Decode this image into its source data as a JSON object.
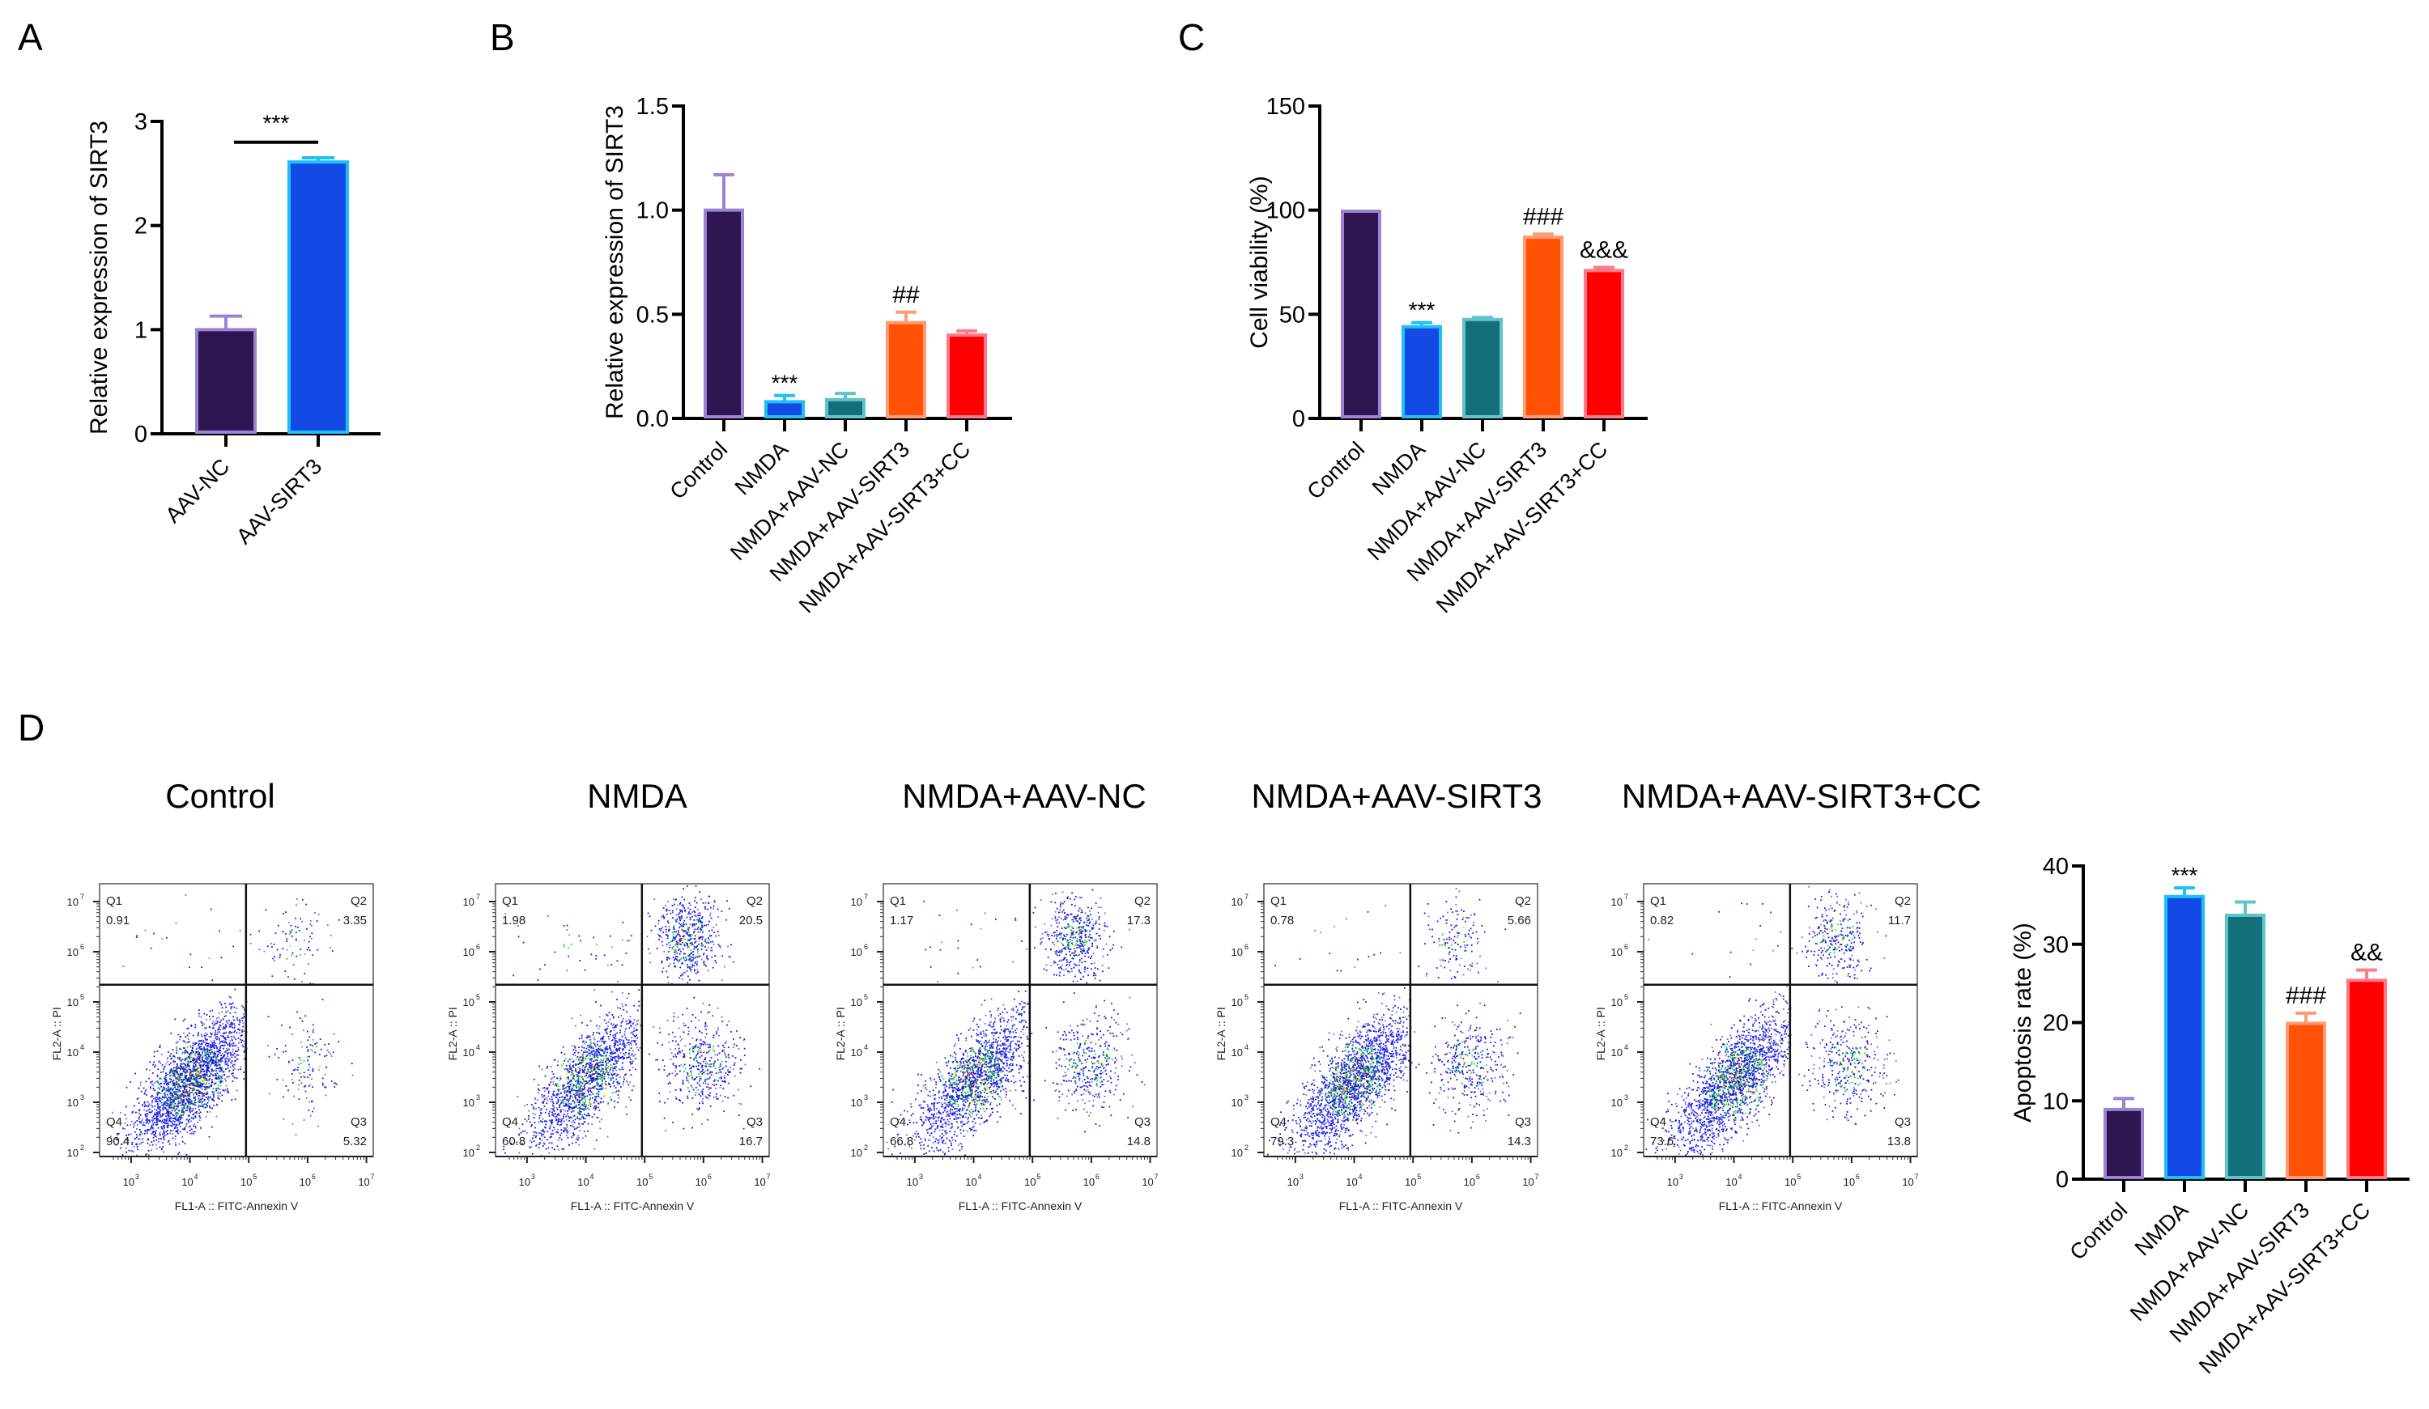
{
  "panels": {
    "A": "A",
    "B": "B",
    "C": "C",
    "D": "D"
  },
  "colors": {
    "Control": {
      "fill": "#2e1450",
      "stroke": "#9b82d2"
    },
    "NMDA": {
      "fill": "#134ae6",
      "stroke": "#1ec0f5"
    },
    "NMDA+AAV-NC": {
      "fill": "#137078",
      "stroke": "#5fc4cc"
    },
    "NMDA+AAV-SIRT3": {
      "fill": "#ff5204",
      "stroke": "#ff9a72"
    },
    "NMDA+AAV-SIRT3+CC": {
      "fill": "#fe0000",
      "stroke": "#ff7a86"
    },
    "AAV-NC": {
      "fill": "#2e1450",
      "stroke": "#9b82d2"
    },
    "AAV-SIRT3": {
      "fill": "#134ae6",
      "stroke": "#1ec0f5"
    }
  },
  "chart_data": [
    {
      "id": "A",
      "type": "bar",
      "title": "",
      "xlabel": "",
      "ylabel": "Relative expression of SIRT3",
      "categories": [
        "AAV-NC",
        "AAV-SIRT3"
      ],
      "values": [
        1.0,
        2.61
      ],
      "error_upper": [
        1.13,
        2.65
      ],
      "ylim": [
        0,
        3
      ],
      "yticks": [
        0,
        1,
        2,
        3
      ],
      "ytick_labels": [
        "0",
        "1",
        "2",
        "3"
      ],
      "annotations": [
        {
          "text": "***",
          "type": "bracket",
          "between": [
            "AAV-NC",
            "AAV-SIRT3"
          ]
        }
      ],
      "grid": false
    },
    {
      "id": "B",
      "type": "bar",
      "title": "",
      "xlabel": "",
      "ylabel": "Relative expression of SIRT3",
      "categories": [
        "Control",
        "NMDA",
        "NMDA+AAV-NC",
        "NMDA+AAV-SIRT3",
        "NMDA+AAV-SIRT3+CC"
      ],
      "values": [
        1.0,
        0.08,
        0.09,
        0.46,
        0.4
      ],
      "error_upper": [
        1.17,
        0.11,
        0.12,
        0.51,
        0.42
      ],
      "ylim": [
        0,
        1.5
      ],
      "yticks": [
        0,
        0.5,
        1.0,
        1.5
      ],
      "ytick_labels": [
        "0.0",
        "0.5",
        "1.0",
        "1.5"
      ],
      "annotations": [
        {
          "text": "***",
          "over": "NMDA"
        },
        {
          "text": "##",
          "over": "NMDA+AAV-SIRT3"
        }
      ],
      "grid": false
    },
    {
      "id": "C",
      "type": "bar",
      "title": "",
      "xlabel": "",
      "ylabel": "Cell viability (%)",
      "categories": [
        "Control",
        "NMDA",
        "NMDA+AAV-NC",
        "NMDA+AAV-SIRT3",
        "NMDA+AAV-SIRT3+CC"
      ],
      "values": [
        99.5,
        44,
        47.5,
        87,
        71
      ],
      "error_upper": [
        99.5,
        46,
        48.5,
        88.5,
        72.5
      ],
      "ylim": [
        0,
        150
      ],
      "yticks": [
        0,
        50,
        100,
        150
      ],
      "ytick_labels": [
        "0",
        "50",
        "100",
        "150"
      ],
      "annotations": [
        {
          "text": "***",
          "over": "NMDA"
        },
        {
          "text": "###",
          "over": "NMDA+AAV-SIRT3"
        },
        {
          "text": "&&&",
          "over": "NMDA+AAV-SIRT3+CC"
        }
      ],
      "grid": false
    },
    {
      "id": "D-bar",
      "type": "bar",
      "title": "",
      "xlabel": "",
      "ylabel": "Apoptosis rate (%)",
      "categories": [
        "Control",
        "NMDA",
        "NMDA+AAV-NC",
        "NMDA+AAV-SIRT3",
        "NMDA+AAV-SIRT3+CC"
      ],
      "values": [
        8.9,
        36.1,
        33.7,
        19.9,
        25.4
      ],
      "error_upper": [
        10.3,
        37.2,
        35.4,
        21.2,
        26.7
      ],
      "ylim": [
        0,
        40
      ],
      "yticks": [
        0,
        10,
        20,
        30,
        40
      ],
      "ytick_labels": [
        "0",
        "10",
        "20",
        "30",
        "40"
      ],
      "annotations": [
        {
          "text": "***",
          "over": "NMDA"
        },
        {
          "text": "###",
          "over": "NMDA+AAV-SIRT3"
        },
        {
          "text": "&&",
          "over": "NMDA+AAV-SIRT3+CC"
        }
      ],
      "grid": false
    },
    {
      "id": "D-flow",
      "type": "scatter",
      "xlabel": "FL1-A :: FITC-Annexin V",
      "ylabel": "FL2-A :: PI",
      "x_scale": "log",
      "y_scale": "log",
      "xticks": [
        "10^3",
        "10^4",
        "10^5",
        "10^6",
        "10^7"
      ],
      "yticks": [
        "10^2",
        "10^3",
        "10^4",
        "10^5",
        "10^6",
        "10^7"
      ],
      "plots": [
        {
          "title": "Control",
          "Q1": "0.91",
          "Q2": "3.35",
          "Q3": "5.32",
          "Q4": "90.4"
        },
        {
          "title": "NMDA",
          "Q1": "1.98",
          "Q2": "20.5",
          "Q3": "16.7",
          "Q4": "60.8"
        },
        {
          "title": "NMDA+AAV-NC",
          "Q1": "1.17",
          "Q2": "17.3",
          "Q3": "14.8",
          "Q4": "66.8"
        },
        {
          "title": "NMDA+AAV-SIRT3",
          "Q1": "0.78",
          "Q2": "5.66",
          "Q3": "14.3",
          "Q4": "79.3"
        },
        {
          "title": "NMDA+AAV-SIRT3+CC",
          "Q1": "0.82",
          "Q2": "11.7",
          "Q3": "13.8",
          "Q4": "73.6"
        }
      ]
    }
  ]
}
